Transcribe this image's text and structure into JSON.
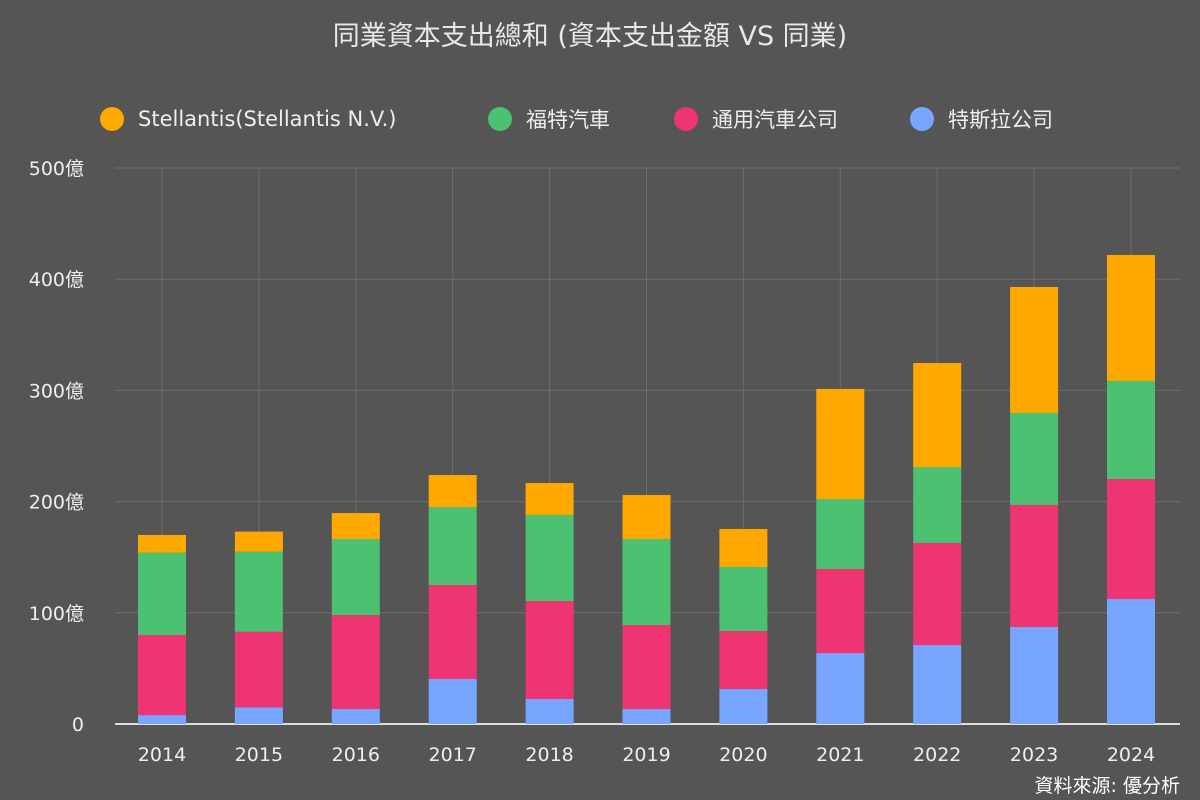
{
  "chart_data": {
    "type": "bar",
    "stacked": true,
    "title": "同業資本支出總和 (資本支出金額 VS 同業)",
    "categories": [
      "2014",
      "2015",
      "2016",
      "2017",
      "2018",
      "2019",
      "2020",
      "2021",
      "2022",
      "2023",
      "2024"
    ],
    "series": [
      {
        "name": "特斯拉公司",
        "color": "#78a6ff",
        "values": [
          8,
          15,
          13.5,
          40.5,
          22.5,
          13.5,
          31.5,
          63.8,
          71,
          87.2,
          112.4
        ]
      },
      {
        "name": "通用汽車公司",
        "color": "#ee3472",
        "values": [
          72,
          68,
          84.5,
          84.5,
          88.1,
          75.5,
          52.1,
          75.6,
          91.8,
          109.8,
          107.9
        ]
      },
      {
        "name": "福特汽車",
        "color": "#4cc172",
        "values": [
          74,
          72,
          68.4,
          70.1,
          77.4,
          77.4,
          57.6,
          62.9,
          68.3,
          82.7,
          88.2
        ]
      },
      {
        "name": "Stellantis(Stellantis N.V.)",
        "color": "#ffa800",
        "values": [
          16,
          18,
          23.3,
          28.8,
          28.7,
          39.5,
          34.2,
          99,
          93.5,
          113.3,
          113.3
        ]
      }
    ],
    "legend_order": [
      3,
      2,
      1,
      0
    ],
    "legend_position": "top",
    "ylim": [
      0,
      500
    ],
    "yticks": [
      "0",
      "100億",
      "200億",
      "300億",
      "400億",
      "500億"
    ],
    "grid": true,
    "source": "資料來源: 優分析"
  }
}
